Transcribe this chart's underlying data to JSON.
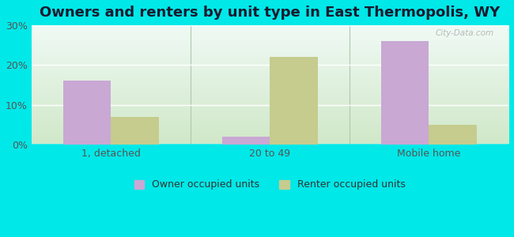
{
  "title": "Owners and renters by unit type in East Thermopolis, WY",
  "categories": [
    "1, detached",
    "20 to 49",
    "Mobile home"
  ],
  "owner_values": [
    16.0,
    2.0,
    26.0
  ],
  "renter_values": [
    7.0,
    22.0,
    5.0
  ],
  "owner_color": "#c9a8d4",
  "renter_color": "#c5cc8e",
  "background_color": "#00e8e8",
  "ylim": [
    0,
    30
  ],
  "yticks": [
    0,
    10,
    20,
    30
  ],
  "bar_width": 0.3,
  "legend_owner": "Owner occupied units",
  "legend_renter": "Renter occupied units",
  "title_fontsize": 13,
  "tick_fontsize": 9,
  "legend_fontsize": 9,
  "plot_bg_bottom": "#d0e8c8",
  "plot_bg_top": "#f0faf5"
}
